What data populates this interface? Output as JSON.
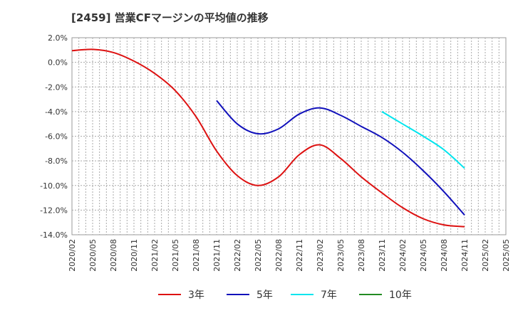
{
  "chart_data": {
    "type": "line",
    "title": "[2459]  営業CFマージンの平均値の推移",
    "xlabel": "",
    "ylabel": "",
    "ylim": [
      -14,
      2
    ],
    "yticks": [
      "2.0%",
      "0.0%",
      "-2.0%",
      "-4.0%",
      "-6.0%",
      "-8.0%",
      "-10.0%",
      "-12.0%",
      "-14.0%"
    ],
    "x_tick_labels": [
      "2020/02",
      "2020/05",
      "2020/08",
      "2020/11",
      "2021/02",
      "2021/05",
      "2021/08",
      "2021/11",
      "2022/02",
      "2022/05",
      "2022/08",
      "2022/11",
      "2023/02",
      "2023/05",
      "2023/08",
      "2023/11",
      "2024/02",
      "2024/05",
      "2024/08",
      "2024/11",
      "2025/02",
      "2025/05"
    ],
    "grid": true,
    "legend_position": "bottom",
    "series": [
      {
        "name": "3年",
        "color": "#dd1111",
        "x": [
          "2020/02",
          "2020/05",
          "2020/08",
          "2020/11",
          "2021/02",
          "2021/05",
          "2021/08",
          "2021/11",
          "2022/02",
          "2022/05",
          "2022/08",
          "2022/11",
          "2023/02",
          "2023/05",
          "2023/08",
          "2023/11",
          "2024/02",
          "2024/05",
          "2024/08",
          "2024/11"
        ],
        "values": [
          0.95,
          1.05,
          0.8,
          0.1,
          -0.9,
          -2.3,
          -4.4,
          -7.2,
          -9.2,
          -10.0,
          -9.3,
          -7.5,
          -6.7,
          -7.8,
          -9.3,
          -10.6,
          -11.8,
          -12.7,
          -13.2,
          -13.35
        ]
      },
      {
        "name": "5年",
        "color": "#1111bb",
        "x": [
          "2021/11",
          "2022/02",
          "2022/05",
          "2022/08",
          "2022/11",
          "2023/02",
          "2023/05",
          "2023/08",
          "2023/11",
          "2024/02",
          "2024/05",
          "2024/08",
          "2024/11"
        ],
        "values": [
          -3.1,
          -5.0,
          -5.8,
          -5.4,
          -4.2,
          -3.7,
          -4.3,
          -5.2,
          -6.1,
          -7.3,
          -8.8,
          -10.5,
          -12.4
        ]
      },
      {
        "name": "7年",
        "color": "#00e5ee",
        "x": [
          "2023/11",
          "2024/02",
          "2024/05",
          "2024/08",
          "2024/11"
        ],
        "values": [
          -4.0,
          -5.0,
          -6.0,
          -7.1,
          -8.6
        ]
      },
      {
        "name": "10年",
        "color": "#228b22",
        "x": [],
        "values": []
      }
    ]
  }
}
